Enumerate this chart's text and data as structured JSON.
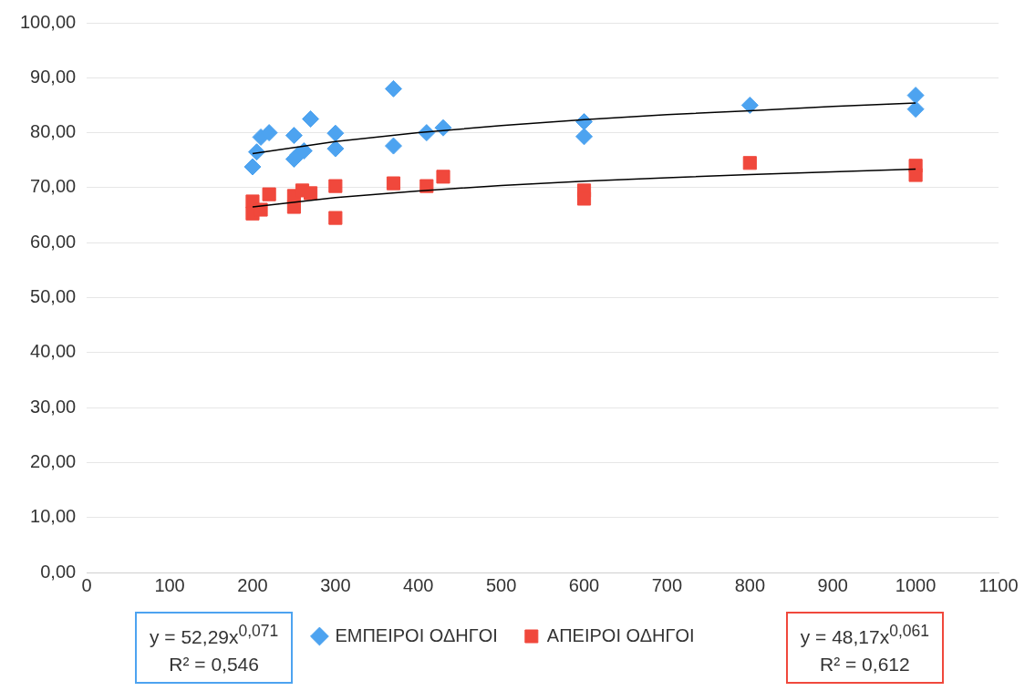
{
  "chart_data": {
    "type": "scatter",
    "xlim": [
      0,
      1100
    ],
    "xticks": [
      0,
      100,
      200,
      300,
      400,
      500,
      600,
      700,
      800,
      900,
      1000,
      1100
    ],
    "ylim": [
      0,
      100
    ],
    "yticks": [
      {
        "value": 0,
        "label": "0,00"
      },
      {
        "value": 10,
        "label": "10,00"
      },
      {
        "value": 20,
        "label": "20,00"
      },
      {
        "value": 30,
        "label": "30,00"
      },
      {
        "value": 40,
        "label": "40,00"
      },
      {
        "value": 50,
        "label": "50,00"
      },
      {
        "value": 60,
        "label": "60,00"
      },
      {
        "value": 70,
        "label": "70,00"
      },
      {
        "value": 80,
        "label": "80,00"
      },
      {
        "value": 90,
        "label": "90,00"
      },
      {
        "value": 100,
        "label": "100,00"
      }
    ],
    "grid": "y",
    "legend": "bottom",
    "series": [
      {
        "name": "ΕΜΠΕΙΡΟΙ ΟΔΗΓΟΙ",
        "color": "#4da3f0",
        "marker": "diamond",
        "x": [
          200,
          205,
          210,
          220,
          250,
          250,
          255,
          262,
          270,
          300,
          300,
          370,
          370,
          410,
          430,
          600,
          600,
          800,
          1000,
          1000
        ],
        "values": [
          73.8,
          76.5,
          79.2,
          80,
          79.5,
          75.2,
          76,
          76.7,
          82.5,
          79.9,
          77.1,
          88,
          77.6,
          80,
          80.9,
          82,
          79.3,
          85,
          86.8,
          84.3
        ]
      },
      {
        "name": "ΑΠΕΙΡΟΙ ΟΔΗΓΟΙ",
        "color": "#f0483c",
        "marker": "square",
        "x": [
          200,
          200,
          210,
          220,
          250,
          250,
          260,
          270,
          300,
          300,
          370,
          410,
          430,
          600,
          600,
          800,
          1000,
          1000
        ],
        "values": [
          67.5,
          65.3,
          66,
          68.8,
          68.5,
          66.5,
          69.5,
          69,
          70.3,
          64.5,
          70.8,
          70.3,
          72,
          69.5,
          68,
          74.5,
          74,
          72.3
        ]
      },
      {
        "type": "line",
        "color": "#000000",
        "marker": "none",
        "x": [
          200,
          300,
          400,
          500,
          600,
          700,
          800,
          900,
          1000
        ],
        "values": [
          76.2,
          78.4,
          80,
          81.3,
          82.4,
          83.3,
          84,
          84.8,
          85.4
        ]
      },
      {
        "type": "line",
        "color": "#000000",
        "marker": "none",
        "x": [
          200,
          300,
          400,
          500,
          600,
          700,
          800,
          900,
          1000
        ],
        "values": [
          66.5,
          68.2,
          69.4,
          70.4,
          71.2,
          71.8,
          72.4,
          72.9,
          73.4
        ]
      }
    ],
    "annotations": [
      "y = 52,29x$^{0,071}$\nR² = 0,546",
      "y = 48,17x$^{0,061}$\nR² = 0,612"
    ]
  }
}
